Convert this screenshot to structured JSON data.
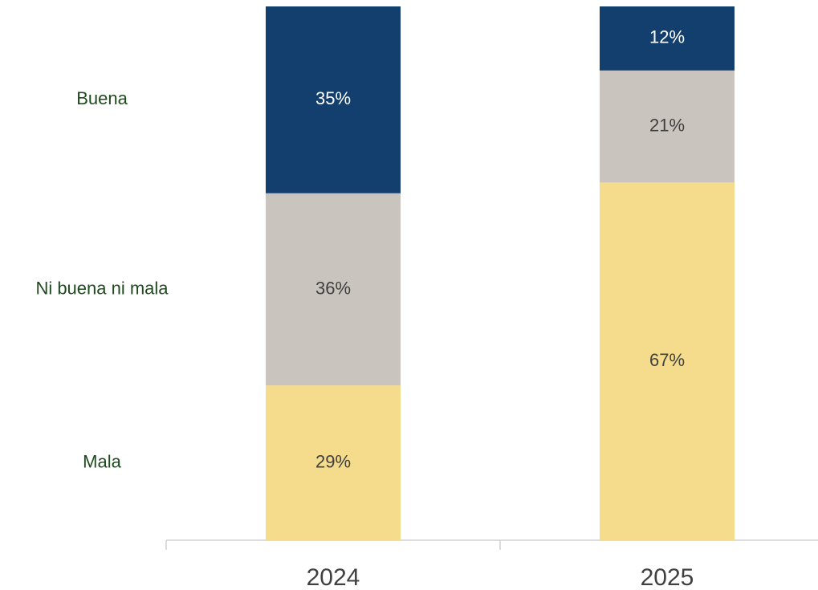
{
  "chart_data": {
    "type": "stacked_bar",
    "categories": [
      "2024",
      "2025"
    ],
    "series": [
      {
        "name": "Mala",
        "color": "#f5dc8c",
        "values": [
          29,
          67
        ],
        "value_labels": [
          "29%",
          "67%"
        ]
      },
      {
        "name": "Ni buena ni mala",
        "color": "#c9c5be",
        "values": [
          36,
          21
        ],
        "value_labels": [
          "36%",
          "21%"
        ]
      },
      {
        "name": "Buena",
        "color": "#123f6e",
        "values": [
          35,
          12
        ],
        "value_labels": [
          "35%",
          "12%"
        ]
      }
    ],
    "ylim": [
      0,
      100
    ]
  }
}
